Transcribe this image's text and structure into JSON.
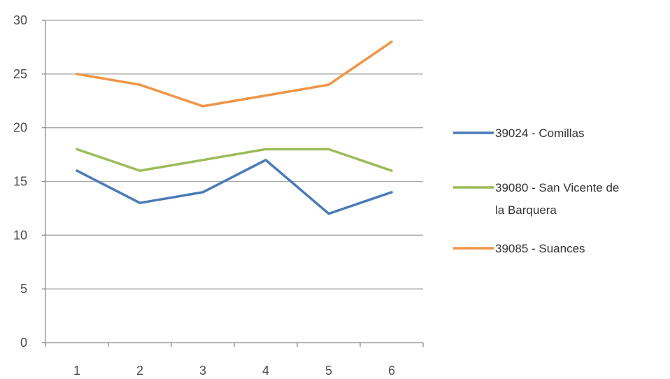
{
  "chart_data": {
    "type": "line",
    "title": "",
    "xlabel": "",
    "ylabel": "",
    "x": [
      1,
      2,
      3,
      4,
      5,
      6
    ],
    "ylim": [
      0,
      30
    ],
    "yticks": [
      0,
      5,
      10,
      15,
      20,
      25,
      30
    ],
    "grid": "horizontal",
    "legend_position": "right",
    "series": [
      {
        "name": "39024 - Comillas",
        "values": [
          16,
          13,
          14,
          17,
          12,
          14
        ],
        "color": "#4a7ab8"
      },
      {
        "name": "39080 - San Vicente de la Barquera",
        "legend_lines": [
          "39080 - San Vicente de",
          "la Barquera"
        ],
        "values": [
          18,
          16,
          17,
          18,
          18,
          16
        ],
        "color": "#9cbb58"
      },
      {
        "name": "39085 - Suances",
        "values": [
          25,
          24,
          22,
          23,
          24,
          28
        ],
        "color": "#ef9548"
      }
    ]
  }
}
